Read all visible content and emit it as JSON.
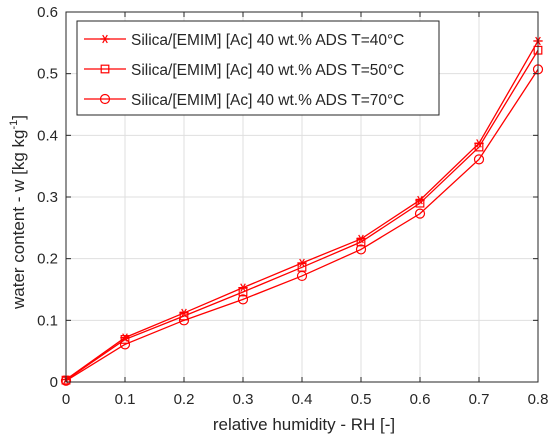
{
  "chart_data": {
    "type": "line",
    "xlabel": "relative humidity - RH [-]",
    "ylabel_main": "water content - w [kg kg",
    "ylabel_sup": "-1",
    "ylabel_end": "]",
    "xlim": [
      0,
      0.8
    ],
    "ylim": [
      0,
      0.6
    ],
    "xticks": [
      0,
      0.1,
      0.2,
      0.3,
      0.4,
      0.5,
      0.6,
      0.7,
      0.8
    ],
    "xtick_labels": [
      "0",
      "0.1",
      "0.2",
      "0.3",
      "0.4",
      "0.5",
      "0.6",
      "0.7",
      "0.8"
    ],
    "yticks": [
      0,
      0.1,
      0.2,
      0.3,
      0.4,
      0.5,
      0.6
    ],
    "ytick_labels": [
      "0",
      "0.1",
      "0.2",
      "0.3",
      "0.4",
      "0.5",
      "0.6"
    ],
    "grid": true,
    "legend_position": "top-left",
    "line_color": "#ff0000",
    "x": [
      0,
      0.1,
      0.2,
      0.3,
      0.4,
      0.5,
      0.6,
      0.7,
      0.8
    ],
    "series": [
      {
        "name": "Silica/[EMIM] [Ac] 40 wt.% ADS T=40°C",
        "marker": "asterisk",
        "values": [
          0.004,
          0.072,
          0.112,
          0.153,
          0.193,
          0.232,
          0.295,
          0.387,
          0.553
        ]
      },
      {
        "name": "Silica/[EMIM] [Ac] 40 wt.% ADS T=50°C",
        "marker": "square",
        "values": [
          0.003,
          0.069,
          0.107,
          0.146,
          0.186,
          0.227,
          0.29,
          0.381,
          0.538
        ]
      },
      {
        "name": "Silica/[EMIM] [Ac] 40 wt.% ADS T=70°C",
        "marker": "circle",
        "values": [
          0.002,
          0.061,
          0.1,
          0.134,
          0.172,
          0.215,
          0.273,
          0.361,
          0.507
        ]
      }
    ]
  }
}
